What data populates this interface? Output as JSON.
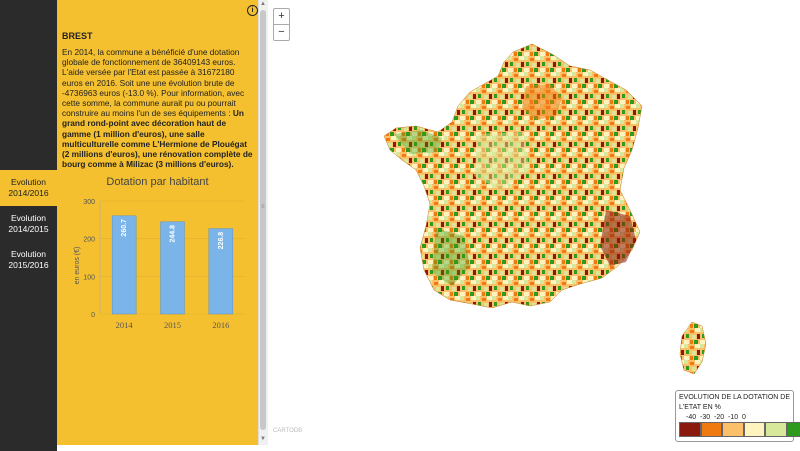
{
  "commune": "BREST",
  "description_text": "En 2014, la commune a bénéficié d'une dotation globale de fonctionnement de 36409143 euros. L'aide versée par l'Etat est passée à 31672180 euros en 2016. Soit une une évolution brute de -4736963 euros (-13.0 %). Pour information, avec cette somme, la commune aurait pu ou pourrait construire au moins l'un de ses équipements : ",
  "description_bold": "Un grand rond-point avec décoration haut de gamme (1 million d'euros), une salle multiculturelle comme L'Hermione de Plouégat (2 millions d'euros), une rénovation complète de bourg comme à Milizac (3 millions d'euros).",
  "info_icon": "i",
  "tabs": [
    {
      "line1": "Evolution",
      "line2": "2014/2016",
      "active": true
    },
    {
      "line1": "Evolution",
      "line2": "2014/2015",
      "active": false
    },
    {
      "line1": "Evolution",
      "line2": "2015/2016",
      "active": false
    }
  ],
  "zoom": {
    "in_label": "+",
    "out_label": "−"
  },
  "chart_data": {
    "type": "bar",
    "title": "Dotation par habitant",
    "ylabel": "en euros (€)",
    "categories": [
      "2014",
      "2015",
      "2016"
    ],
    "values": [
      260.7,
      244.8,
      226.8
    ],
    "value_labels": [
      "260.7",
      "244.8",
      "226.8"
    ],
    "ylim": [
      0,
      300
    ],
    "yticks": [
      0,
      100,
      200,
      300
    ],
    "bar_color": "#7ab4e8",
    "grid": true
  },
  "legend": {
    "title": "EVOLUTION DE LA DOTATION DE L'ETAT EN %",
    "ticks": [
      "-40",
      "-30",
      "-20",
      "-10",
      "0"
    ],
    "colors": [
      "#8b1a0e",
      "#f07a12",
      "#fcc06a",
      "#fff4bf",
      "#d8e89b",
      "#2e9b1d"
    ]
  },
  "watermark": "CARTODB",
  "map_colors": {
    "dark_red": "#8b1a0e",
    "orange": "#f07a12",
    "light_orange": "#fcc06a",
    "cream": "#fff4bf",
    "light_green": "#d8e89b",
    "green": "#2e9b1d"
  }
}
